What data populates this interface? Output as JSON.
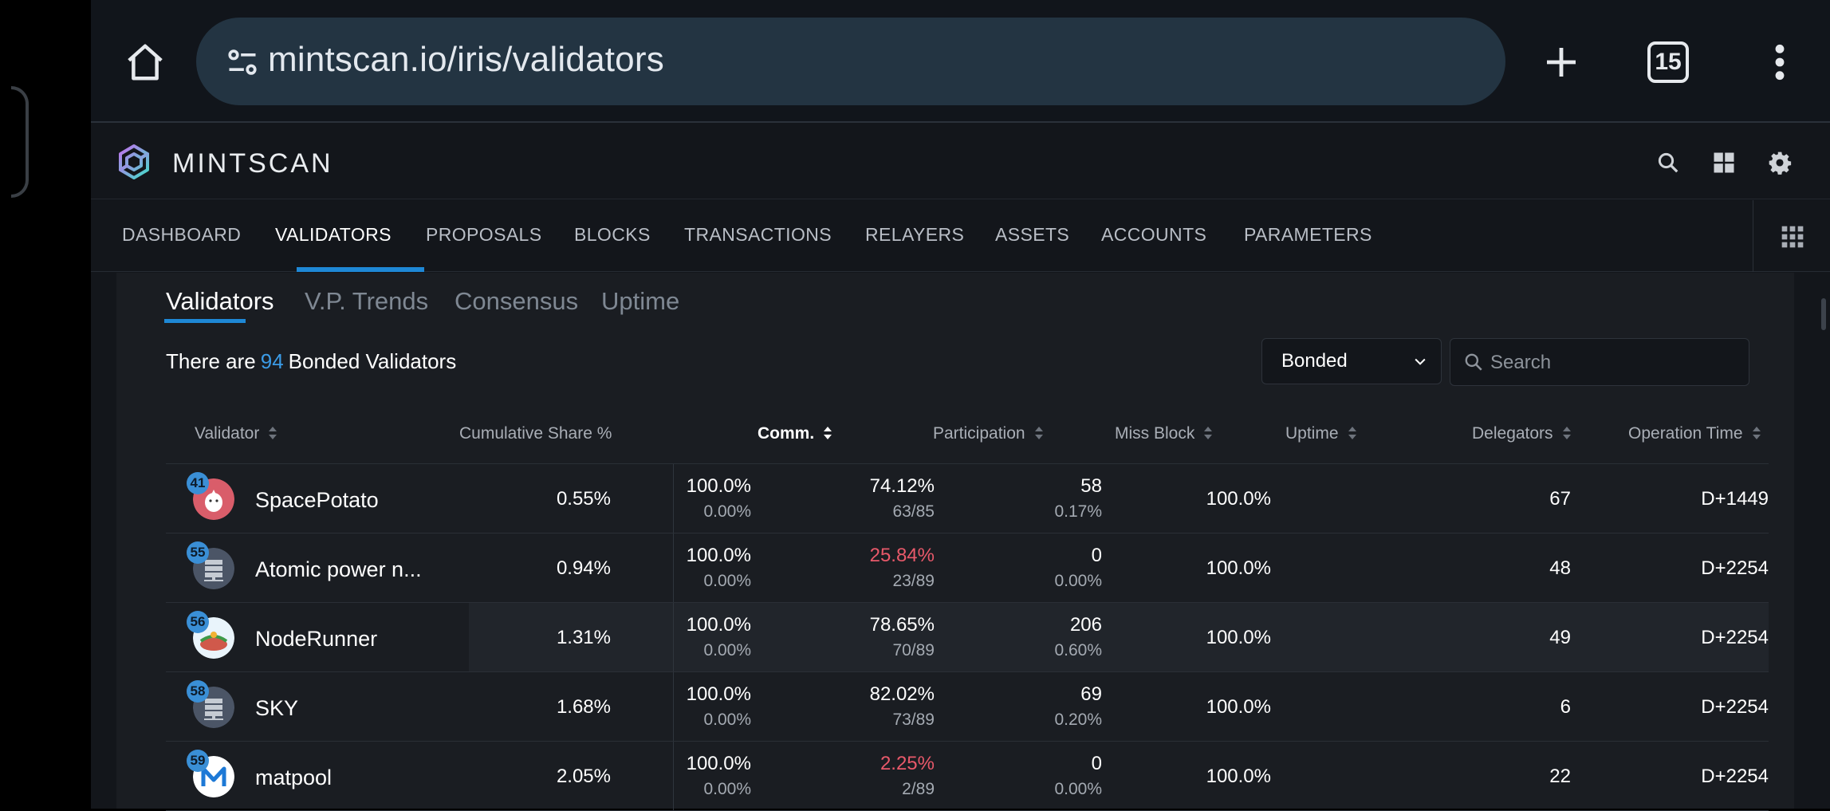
{
  "browser": {
    "url": "mintscan.io/iris/validators",
    "tab_count": "15"
  },
  "site": {
    "brand": "MINTSCAN"
  },
  "nav": {
    "items": [
      "DASHBOARD",
      "VALIDATORS",
      "PROPOSALS",
      "BLOCKS",
      "TRANSACTIONS",
      "RELAYERS",
      "ASSETS",
      "ACCOUNTS",
      "PARAMETERS"
    ],
    "active": "VALIDATORS"
  },
  "subtabs": {
    "items": [
      "Validators",
      "V.P. Trends",
      "Consensus",
      "Uptime"
    ],
    "active": "Validators"
  },
  "summary": {
    "prefix": "There are",
    "count": "94",
    "suffix": "Bonded Validators"
  },
  "filter": {
    "selected": "Bonded",
    "search_placeholder": "Search"
  },
  "table": {
    "headers": [
      "Validator",
      "Cumulative Share %",
      "Comm.",
      "Participation",
      "Miss Block",
      "Uptime",
      "Delegators",
      "Operation Time"
    ],
    "sorted_column": "Comm.",
    "rows": [
      {
        "rank": "41",
        "name": "SpacePotato",
        "cumulative": "0.55%",
        "comm": "100.0%",
        "comm_sub": "0.00%",
        "participation": "74.12%",
        "participation_sub": "63/85",
        "participation_low": false,
        "miss": "58",
        "miss_sub": "0.17%",
        "uptime": "100.0%",
        "delegators": "67",
        "optime": "D+1449",
        "avatar": "potato"
      },
      {
        "rank": "55",
        "name": "Atomic power n...",
        "cumulative": "0.94%",
        "comm": "100.0%",
        "comm_sub": "0.00%",
        "participation": "25.84%",
        "participation_sub": "23/89",
        "participation_low": true,
        "miss": "0",
        "miss_sub": "0.00%",
        "uptime": "100.0%",
        "delegators": "48",
        "optime": "D+2254",
        "avatar": "server"
      },
      {
        "rank": "56",
        "name": "NodeRunner",
        "cumulative": "1.31%",
        "comm": "100.0%",
        "comm_sub": "0.00%",
        "participation": "78.65%",
        "participation_sub": "70/89",
        "participation_low": false,
        "miss": "206",
        "miss_sub": "0.60%",
        "uptime": "100.0%",
        "delegators": "49",
        "optime": "D+2254",
        "avatar": "runner"
      },
      {
        "rank": "58",
        "name": "SKY",
        "cumulative": "1.68%",
        "comm": "100.0%",
        "comm_sub": "0.00%",
        "participation": "82.02%",
        "participation_sub": "73/89",
        "participation_low": false,
        "miss": "69",
        "miss_sub": "0.20%",
        "uptime": "100.0%",
        "delegators": "6",
        "optime": "D+2254",
        "avatar": "server"
      },
      {
        "rank": "59",
        "name": "matpool",
        "cumulative": "2.05%",
        "comm": "100.0%",
        "comm_sub": "0.00%",
        "participation": "2.25%",
        "participation_sub": "2/89",
        "participation_low": true,
        "miss": "0",
        "miss_sub": "0.00%",
        "uptime": "100.0%",
        "delegators": "22",
        "optime": "D+2254",
        "avatar": "matpool"
      }
    ]
  },
  "colors": {
    "accent": "#1e88d6",
    "low_participation": "#e8596a",
    "background": "#13161b"
  }
}
